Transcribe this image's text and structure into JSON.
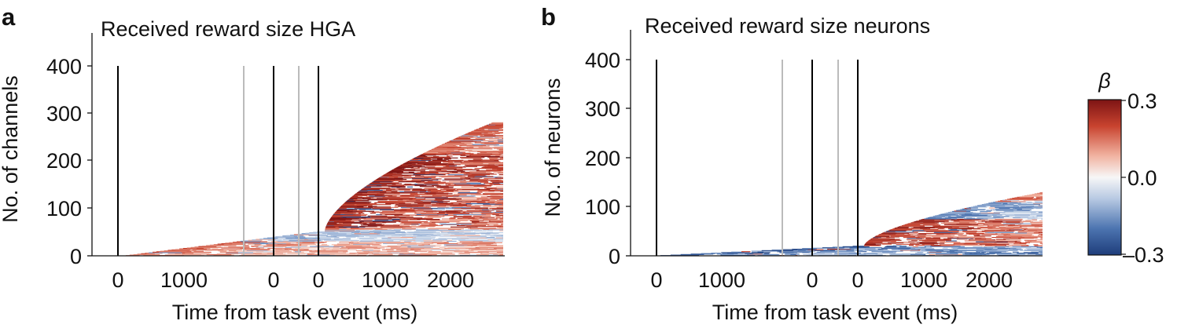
{
  "chart_data": [
    {
      "type": "heatmap",
      "panel_label": "a",
      "title": "Received reward size HGA",
      "xlabel": "Time from task event (ms)",
      "ylabel": "No. of channels",
      "ylim": [
        0,
        450
      ],
      "yticks": [
        0,
        100,
        200,
        300,
        400
      ],
      "x_tick_labels": [
        "0",
        "1000",
        "0",
        "0",
        "1000",
        "2000"
      ],
      "event_lines": [
        {
          "name": "event-1",
          "color": "#000000"
        },
        {
          "name": "event-gray-1",
          "color": "#bbbbbb"
        },
        {
          "name": "event-2",
          "color": "#000000"
        },
        {
          "name": "event-gray-2",
          "color": "#bbbbbb"
        },
        {
          "name": "event-3",
          "color": "#000000"
        }
      ],
      "n_units": 280,
      "bands": [
        {
          "rows": [
            0,
            30
          ],
          "sign": "positive",
          "strength": 0.55
        },
        {
          "rows": [
            30,
            55
          ],
          "sign": "negative",
          "strength": 0.45
        },
        {
          "rows": [
            60,
            215
          ],
          "sign": "positive",
          "strength": 0.9
        },
        {
          "rows": [
            215,
            280
          ],
          "sign": "positive",
          "strength": 0.6
        }
      ]
    },
    {
      "type": "heatmap",
      "panel_label": "b",
      "title": "Received reward size neurons",
      "xlabel": "Time from task event (ms)",
      "ylabel": "No. of neurons",
      "ylim": [
        0,
        450
      ],
      "yticks": [
        0,
        100,
        200,
        300,
        400
      ],
      "x_tick_labels": [
        "0",
        "1000",
        "0",
        "0",
        "1000",
        "2000"
      ],
      "event_lines": [
        {
          "name": "event-1",
          "color": "#000000"
        },
        {
          "name": "event-gray-1",
          "color": "#bbbbbb"
        },
        {
          "name": "event-2",
          "color": "#000000"
        },
        {
          "name": "event-gray-2",
          "color": "#bbbbbb"
        },
        {
          "name": "event-3",
          "color": "#000000"
        }
      ],
      "n_units": 130,
      "bands": [
        {
          "rows": [
            0,
            20
          ],
          "sign": "negative",
          "strength": 0.8
        },
        {
          "rows": [
            20,
            75
          ],
          "sign": "positive",
          "strength": 0.8
        },
        {
          "rows": [
            75,
            110
          ],
          "sign": "negative",
          "strength": 0.55
        },
        {
          "rows": [
            110,
            130
          ],
          "sign": "positive",
          "strength": 0.5
        }
      ]
    }
  ],
  "colorbar": {
    "label": "β",
    "max_label": "0.3",
    "mid_label": "0.0",
    "min_label": "–0.3",
    "range": [
      -0.3,
      0.3
    ],
    "colors": [
      "#1e3d7b",
      "#4c74b0",
      "#b6c8e2",
      "#f7f7f7",
      "#f1b2a0",
      "#c8432f",
      "#7d1414"
    ]
  }
}
